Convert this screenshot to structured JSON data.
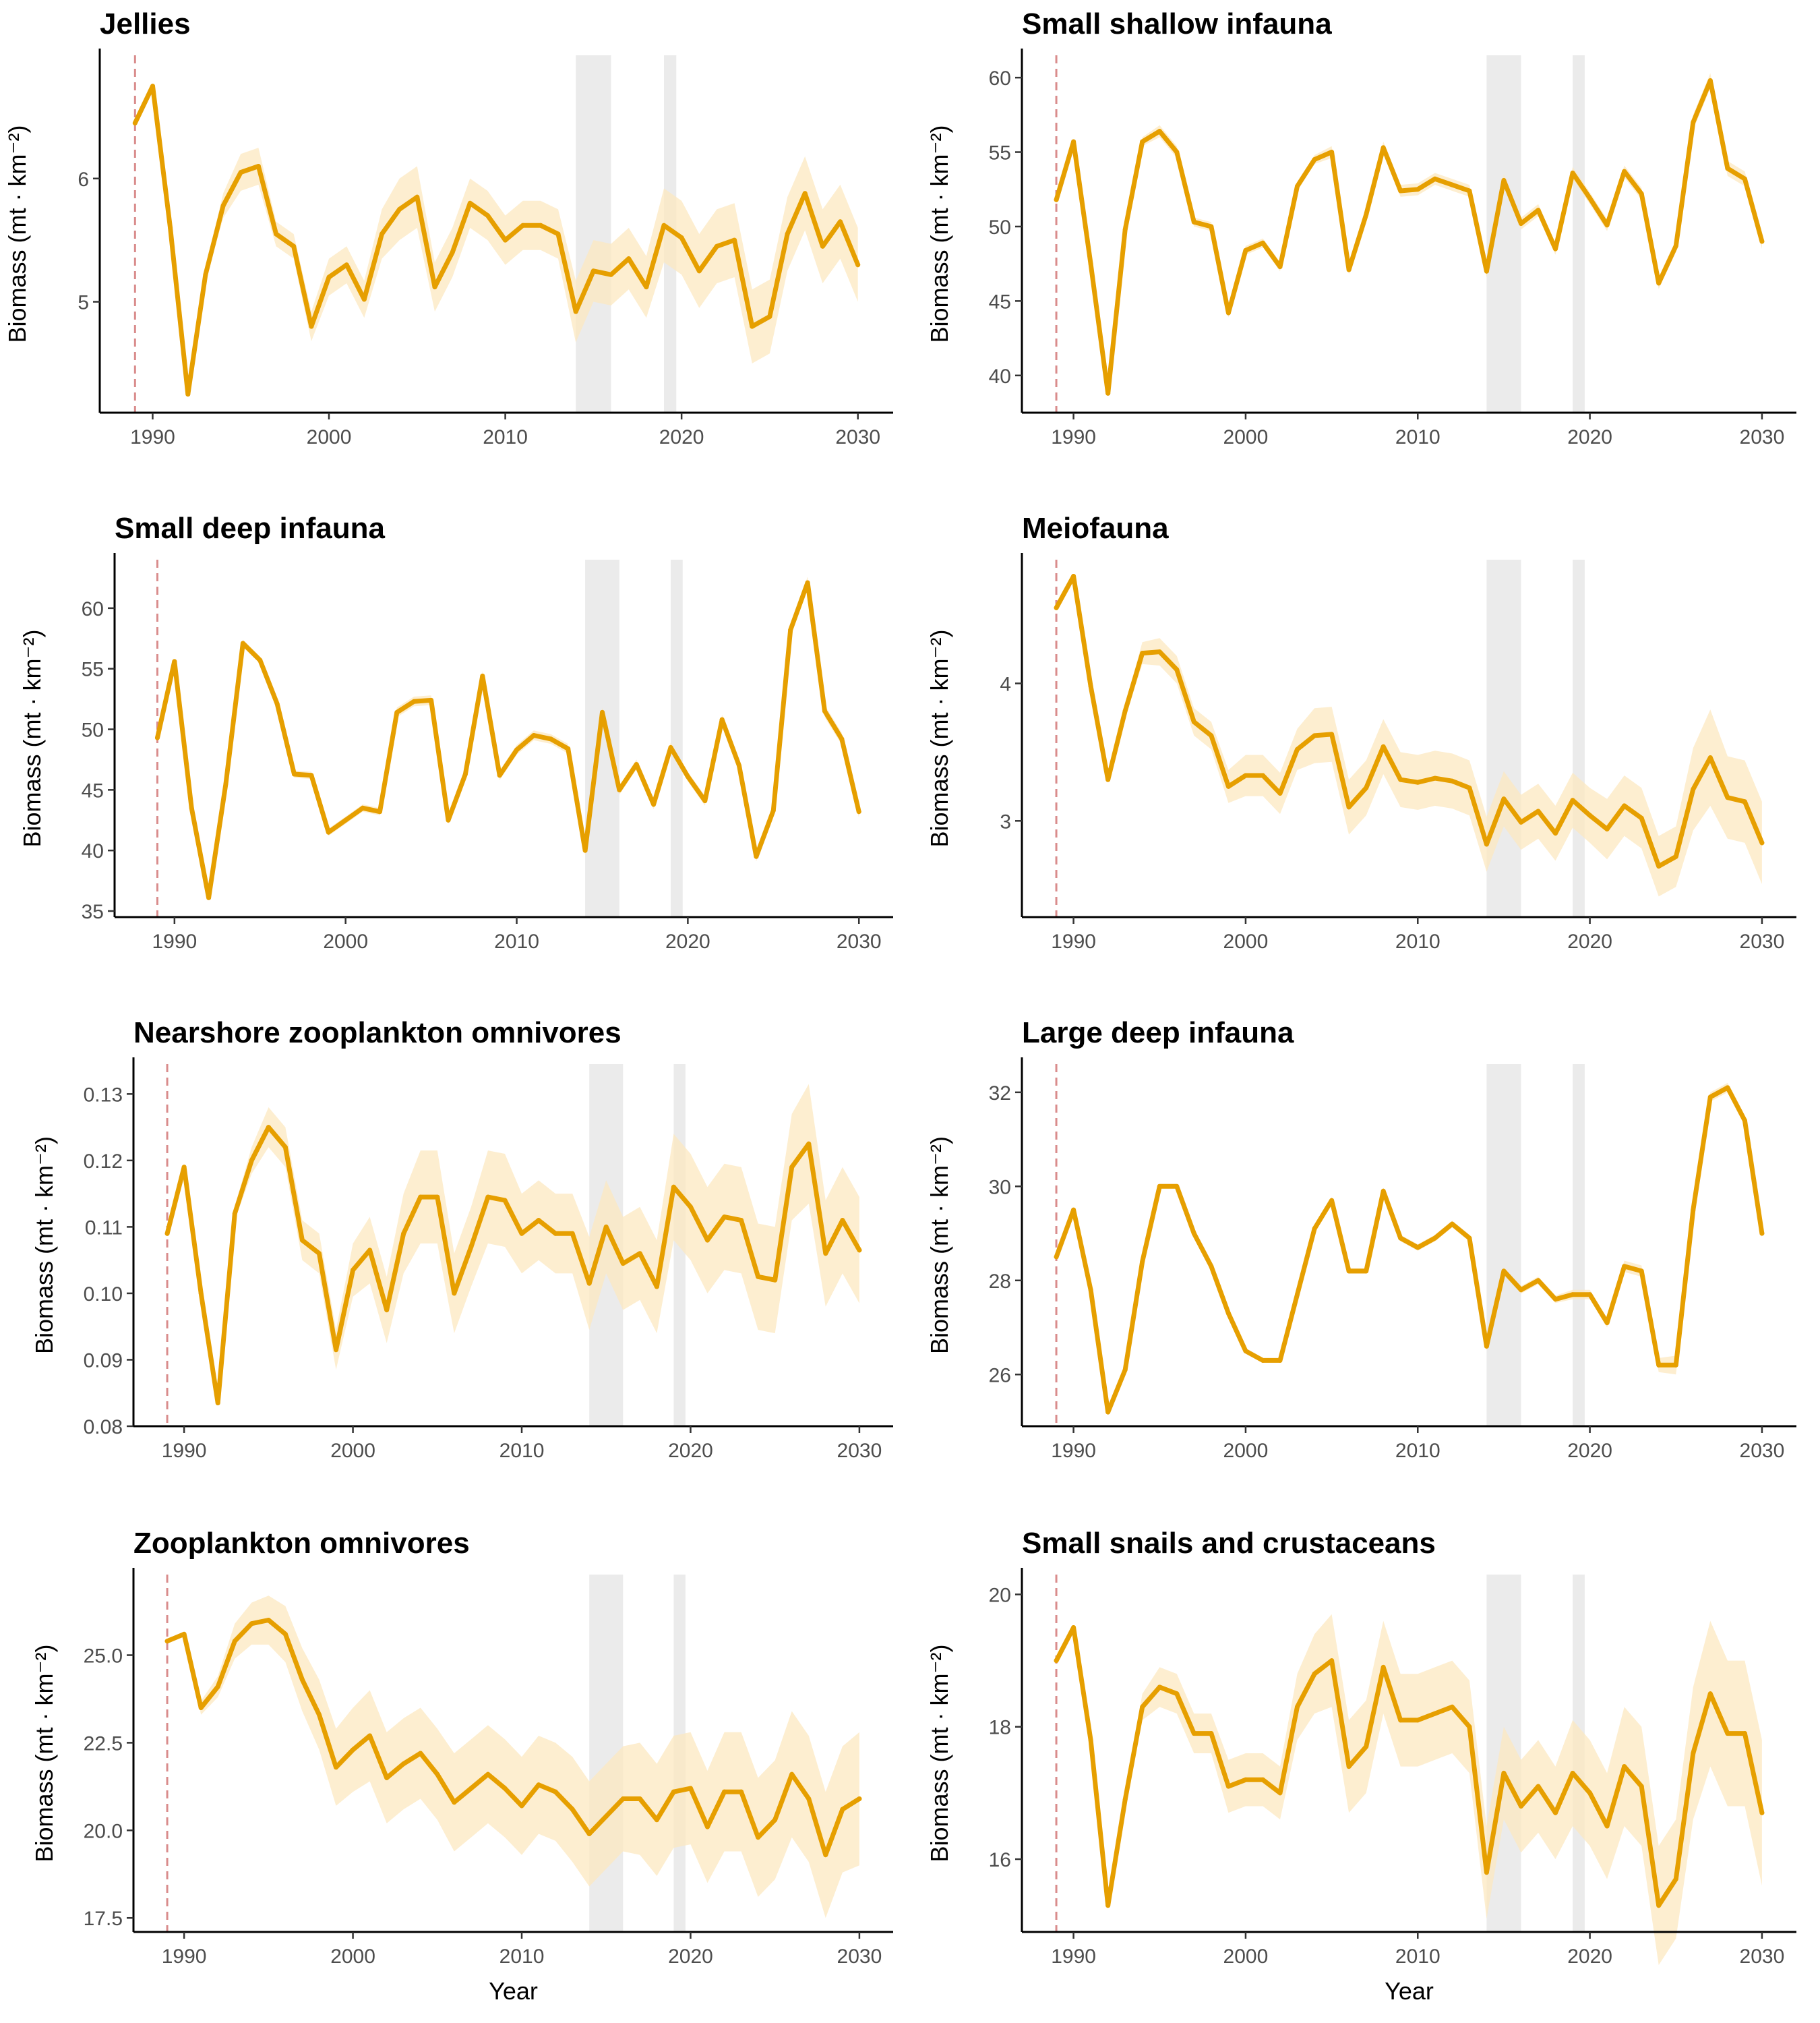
{
  "figure": {
    "xlabel": "Year",
    "ylabel": "Biomass (mt · km⁻²)",
    "colors": {
      "line": "#E69F00",
      "ribbon": "#FCE8C0",
      "event_band": "#EBEBEB",
      "marker_line": "#D98C8C"
    },
    "marker_year": 1989,
    "event_bands": [
      [
        2014,
        2016
      ],
      [
        2019,
        2019.7
      ]
    ],
    "x_ticks": [
      1990,
      2000,
      2010,
      2020,
      2030
    ]
  },
  "chart_data": [
    {
      "type": "line",
      "title": "Jellies",
      "xlim": [
        1987,
        2032
      ],
      "ylim": [
        4.1,
        7.0
      ],
      "yticks": [
        5,
        6
      ],
      "ytick_labels": [
        "5",
        "6"
      ],
      "x": [
        1989,
        1990,
        1991,
        1992,
        1993,
        1994,
        1995,
        1996,
        1997,
        1998,
        1999,
        2000,
        2001,
        2002,
        2003,
        2004,
        2005,
        2006,
        2007,
        2008,
        2009,
        2010,
        2011,
        2012,
        2013,
        2014,
        2015,
        2016,
        2017,
        2018,
        2019,
        2020,
        2021,
        2022,
        2023,
        2024,
        2025,
        2026,
        2027,
        2028,
        2029,
        2030
      ],
      "y": [
        6.45,
        6.75,
        5.6,
        4.25,
        5.22,
        5.78,
        6.05,
        6.1,
        5.55,
        5.45,
        4.8,
        5.2,
        5.3,
        5.02,
        5.55,
        5.75,
        5.85,
        5.12,
        5.4,
        5.8,
        5.7,
        5.5,
        5.62,
        5.62,
        5.55,
        4.92,
        5.25,
        5.22,
        5.35,
        5.12,
        5.62,
        5.52,
        5.25,
        5.45,
        5.5,
        4.8,
        4.88,
        5.55,
        5.88,
        5.45,
        5.65,
        5.3
      ],
      "band": [
        0,
        0,
        0,
        0,
        0.05,
        0.1,
        0.15,
        0.15,
        0.1,
        0.1,
        0.12,
        0.15,
        0.15,
        0.15,
        0.2,
        0.25,
        0.25,
        0.2,
        0.2,
        0.2,
        0.2,
        0.2,
        0.2,
        0.2,
        0.2,
        0.25,
        0.25,
        0.25,
        0.25,
        0.25,
        0.3,
        0.3,
        0.3,
        0.3,
        0.3,
        0.3,
        0.3,
        0.3,
        0.3,
        0.3,
        0.3,
        0.3
      ]
    },
    {
      "type": "line",
      "title": "Small shallow infauna",
      "xlim": [
        1987,
        2032
      ],
      "ylim": [
        37.5,
        61.5
      ],
      "yticks": [
        40,
        45,
        50,
        55,
        60
      ],
      "ytick_labels": [
        "40",
        "45",
        "50",
        "55",
        "60"
      ],
      "x": [
        1989,
        1990,
        1991,
        1992,
        1993,
        1994,
        1995,
        1996,
        1997,
        1998,
        1999,
        2000,
        2001,
        2002,
        2003,
        2004,
        2005,
        2006,
        2007,
        2008,
        2009,
        2010,
        2011,
        2012,
        2013,
        2014,
        2015,
        2016,
        2017,
        2018,
        2019,
        2020,
        2021,
        2022,
        2023,
        2024,
        2025,
        2026,
        2027,
        2028,
        2029,
        2030
      ],
      "y": [
        51.8,
        55.7,
        47.5,
        38.8,
        49.8,
        55.7,
        56.4,
        55,
        50.3,
        50,
        44.2,
        48.4,
        48.9,
        47.3,
        52.7,
        54.5,
        55,
        47.1,
        50.8,
        55.3,
        52.4,
        52.5,
        53.2,
        52.8,
        52.4,
        47,
        53.1,
        50.2,
        51.1,
        48.5,
        53.6,
        51.9,
        50.1,
        53.7,
        52.2,
        46.2,
        48.7,
        57,
        59.8,
        53.9,
        53.2,
        49
      ],
      "band": [
        0,
        0,
        0,
        0,
        0.2,
        0.3,
        0.4,
        0.4,
        0.3,
        0.3,
        0.3,
        0.3,
        0.3,
        0.3,
        0.3,
        0.3,
        0.4,
        0.3,
        0.3,
        0.4,
        0.4,
        0.4,
        0.4,
        0.4,
        0.4,
        0.4,
        0.4,
        0.4,
        0.4,
        0.4,
        0.4,
        0.4,
        0.4,
        0.4,
        0.4,
        0.4,
        0.4,
        0.5,
        0.5,
        0.5,
        0.5,
        0.5
      ]
    },
    {
      "type": "line",
      "title": "Small deep infauna",
      "xlim": [
        1986.5,
        2032
      ],
      "ylim": [
        34.5,
        64
      ],
      "yticks": [
        35,
        40,
        45,
        50,
        55,
        60
      ],
      "ytick_labels": [
        "35",
        "40",
        "45",
        "50",
        "55",
        "60"
      ],
      "x": [
        1989,
        1990,
        1991,
        1992,
        1993,
        1994,
        1995,
        1996,
        1997,
        1998,
        1999,
        2000,
        2001,
        2002,
        2003,
        2004,
        2005,
        2006,
        2007,
        2008,
        2009,
        2010,
        2011,
        2012,
        2013,
        2014,
        2015,
        2016,
        2017,
        2018,
        2019,
        2020,
        2021,
        2022,
        2023,
        2024,
        2025,
        2026,
        2027,
        2028,
        2029,
        2030
      ],
      "y": [
        49.3,
        55.6,
        43.5,
        36.1,
        45.5,
        57.1,
        55.7,
        52.1,
        46.3,
        46.2,
        41.5,
        42.5,
        43.5,
        43.2,
        51.4,
        52.3,
        52.4,
        42.5,
        46.3,
        54.4,
        46.2,
        48.3,
        49.5,
        49.2,
        48.4,
        40,
        51.4,
        45,
        47.1,
        43.8,
        48.5,
        46.1,
        44.1,
        50.8,
        47,
        39.5,
        43.3,
        58.2,
        62.1,
        51.5,
        49.2,
        43.2
      ],
      "band": [
        0,
        0,
        0,
        0,
        0.2,
        0.3,
        0.3,
        0.3,
        0.3,
        0.3,
        0.3,
        0.3,
        0.3,
        0.3,
        0.4,
        0.4,
        0.4,
        0.3,
        0.3,
        0.4,
        0.4,
        0.4,
        0.4,
        0.4,
        0.4,
        0.4,
        0.4,
        0.4,
        0.4,
        0.4,
        0.4,
        0.4,
        0.4,
        0.4,
        0.4,
        0.4,
        0.4,
        0.5,
        0.5,
        0.5,
        0.5,
        0.5
      ]
    },
    {
      "type": "line",
      "title": "Meiofauna",
      "xlim": [
        1987,
        2032
      ],
      "ylim": [
        2.3,
        4.9
      ],
      "yticks": [
        3,
        4
      ],
      "ytick_labels": [
        "3",
        "4"
      ],
      "x": [
        1989,
        1990,
        1991,
        1992,
        1993,
        1994,
        1995,
        1996,
        1997,
        1998,
        1999,
        2000,
        2001,
        2002,
        2003,
        2004,
        2005,
        2006,
        2007,
        2008,
        2009,
        2010,
        2011,
        2012,
        2013,
        2014,
        2015,
        2016,
        2017,
        2018,
        2019,
        2020,
        2021,
        2022,
        2023,
        2024,
        2025,
        2026,
        2027,
        2028,
        2029,
        2030
      ],
      "y": [
        4.55,
        4.78,
        3.98,
        3.3,
        3.8,
        4.22,
        4.23,
        4.1,
        3.72,
        3.62,
        3.25,
        3.33,
        3.33,
        3.2,
        3.52,
        3.62,
        3.63,
        3.1,
        3.24,
        3.54,
        3.3,
        3.28,
        3.31,
        3.29,
        3.24,
        2.83,
        3.16,
        2.99,
        3.07,
        2.91,
        3.15,
        3.04,
        2.94,
        3.11,
        3.02,
        2.67,
        2.74,
        3.23,
        3.46,
        3.17,
        3.14,
        2.84
      ],
      "band": [
        0,
        0,
        0,
        0,
        0.05,
        0.08,
        0.1,
        0.1,
        0.1,
        0.1,
        0.12,
        0.15,
        0.15,
        0.15,
        0.15,
        0.2,
        0.2,
        0.2,
        0.2,
        0.2,
        0.2,
        0.2,
        0.2,
        0.2,
        0.2,
        0.2,
        0.2,
        0.2,
        0.2,
        0.2,
        0.2,
        0.2,
        0.22,
        0.22,
        0.22,
        0.22,
        0.22,
        0.3,
        0.35,
        0.3,
        0.3,
        0.3
      ]
    },
    {
      "type": "line",
      "title": "Nearshore zooplankton omnivores",
      "xlim": [
        1987,
        2032
      ],
      "ylim": [
        0.08,
        0.1345
      ],
      "yticks": [
        0.08,
        0.09,
        0.1,
        0.11,
        0.12,
        0.13
      ],
      "ytick_labels": [
        "0.08",
        "0.09",
        "0.10",
        "0.11",
        "0.12",
        "0.13"
      ],
      "x": [
        1989,
        1990,
        1991,
        1992,
        1993,
        1994,
        1995,
        1996,
        1997,
        1998,
        1999,
        2000,
        2001,
        2002,
        2003,
        2004,
        2005,
        2006,
        2007,
        2008,
        2009,
        2010,
        2011,
        2012,
        2013,
        2014,
        2015,
        2016,
        2017,
        2018,
        2019,
        2020,
        2021,
        2022,
        2023,
        2024,
        2025,
        2026,
        2027,
        2028,
        2029,
        2030
      ],
      "y": [
        0.109,
        0.119,
        0.1,
        0.0835,
        0.112,
        0.12,
        0.125,
        0.122,
        0.108,
        0.106,
        0.0915,
        0.1035,
        0.1065,
        0.0975,
        0.109,
        0.1145,
        0.1145,
        0.1,
        0.107,
        0.1145,
        0.114,
        0.109,
        0.111,
        0.109,
        0.109,
        0.1015,
        0.11,
        0.1045,
        0.106,
        0.101,
        0.116,
        0.113,
        0.108,
        0.1115,
        0.111,
        0.1025,
        0.102,
        0.119,
        0.1225,
        0.106,
        0.111,
        0.1065
      ],
      "band": [
        0,
        0,
        0,
        0,
        0.001,
        0.002,
        0.003,
        0.003,
        0.003,
        0.003,
        0.003,
        0.004,
        0.005,
        0.005,
        0.006,
        0.007,
        0.007,
        0.006,
        0.006,
        0.007,
        0.007,
        0.006,
        0.006,
        0.006,
        0.006,
        0.007,
        0.007,
        0.007,
        0.007,
        0.007,
        0.008,
        0.008,
        0.008,
        0.008,
        0.008,
        0.008,
        0.008,
        0.008,
        0.009,
        0.008,
        0.008,
        0.008
      ]
    },
    {
      "type": "line",
      "title": "Large deep infauna",
      "xlim": [
        1987,
        2032
      ],
      "ylim": [
        24.9,
        32.6
      ],
      "yticks": [
        26,
        28,
        30,
        32
      ],
      "ytick_labels": [
        "26",
        "28",
        "30",
        "32"
      ],
      "x": [
        1989,
        1990,
        1991,
        1992,
        1993,
        1994,
        1995,
        1996,
        1997,
        1998,
        1999,
        2000,
        2001,
        2002,
        2003,
        2004,
        2005,
        2006,
        2007,
        2008,
        2009,
        2010,
        2011,
        2012,
        2013,
        2014,
        2015,
        2016,
        2017,
        2018,
        2019,
        2020,
        2021,
        2022,
        2023,
        2024,
        2025,
        2026,
        2027,
        2028,
        2029,
        2030
      ],
      "y": [
        28.5,
        29.5,
        27.8,
        25.2,
        26.1,
        28.4,
        30,
        30,
        29,
        28.3,
        27.3,
        26.5,
        26.3,
        26.3,
        27.7,
        29.1,
        29.7,
        28.2,
        28.2,
        29.9,
        28.9,
        28.7,
        28.9,
        29.2,
        28.9,
        26.6,
        28.2,
        27.8,
        28,
        27.6,
        27.7,
        27.7,
        27.1,
        28.3,
        28.2,
        26.2,
        26.2,
        29.5,
        31.9,
        32.1,
        31.4,
        29
      ],
      "band": [
        0,
        0,
        0,
        0,
        0.02,
        0.03,
        0.05,
        0.05,
        0.05,
        0.05,
        0.05,
        0.05,
        0.05,
        0.05,
        0.06,
        0.07,
        0.07,
        0.06,
        0.06,
        0.07,
        0.07,
        0.07,
        0.07,
        0.07,
        0.07,
        0.08,
        0.08,
        0.08,
        0.08,
        0.08,
        0.1,
        0.1,
        0.1,
        0.12,
        0.12,
        0.15,
        0.2,
        0.1,
        0.1,
        0.1,
        0.1,
        0.1
      ]
    },
    {
      "type": "line",
      "title": "Zooplankton omnivores",
      "xlim": [
        1987,
        2032
      ],
      "ylim": [
        17.1,
        27.3
      ],
      "yticks": [
        17.5,
        20,
        22.5,
        25
      ],
      "ytick_labels": [
        "17.5",
        "20.0",
        "22.5",
        "25.0"
      ],
      "x": [
        1989,
        1990,
        1991,
        1992,
        1993,
        1994,
        1995,
        1996,
        1997,
        1998,
        1999,
        2000,
        2001,
        2002,
        2003,
        2004,
        2005,
        2006,
        2007,
        2008,
        2009,
        2010,
        2011,
        2012,
        2013,
        2014,
        2015,
        2016,
        2017,
        2018,
        2019,
        2020,
        2021,
        2022,
        2023,
        2024,
        2025,
        2026,
        2027,
        2028,
        2029,
        2030
      ],
      "y": [
        25.4,
        25.6,
        23.5,
        24.1,
        25.4,
        25.9,
        26,
        25.6,
        24.3,
        23.3,
        21.8,
        22.3,
        22.7,
        21.5,
        21.9,
        22.2,
        21.6,
        20.8,
        21.2,
        21.6,
        21.2,
        20.7,
        21.3,
        21.1,
        20.6,
        19.9,
        20.4,
        20.9,
        20.9,
        20.3,
        21.1,
        21.2,
        20.1,
        21.1,
        21.1,
        19.8,
        20.3,
        21.6,
        20.9,
        19.3,
        20.6,
        20.9
      ],
      "band": [
        0,
        0,
        0.2,
        0.3,
        0.5,
        0.6,
        0.7,
        0.8,
        0.9,
        1,
        1.1,
        1.2,
        1.3,
        1.3,
        1.3,
        1.3,
        1.3,
        1.4,
        1.4,
        1.4,
        1.4,
        1.4,
        1.4,
        1.4,
        1.5,
        1.5,
        1.5,
        1.5,
        1.6,
        1.6,
        1.6,
        1.6,
        1.6,
        1.7,
        1.7,
        1.7,
        1.7,
        1.8,
        1.8,
        1.8,
        1.8,
        1.9
      ]
    },
    {
      "type": "line",
      "title": "Small snails and crustaceans",
      "xlim": [
        1987,
        2032
      ],
      "ylim": [
        14.9,
        20.3
      ],
      "yticks": [
        16,
        18,
        20
      ],
      "ytick_labels": [
        "16",
        "18",
        "20"
      ],
      "x": [
        1989,
        1990,
        1991,
        1992,
        1993,
        1994,
        1995,
        1996,
        1997,
        1998,
        1999,
        2000,
        2001,
        2002,
        2003,
        2004,
        2005,
        2006,
        2007,
        2008,
        2009,
        2010,
        2011,
        2012,
        2013,
        2014,
        2015,
        2016,
        2017,
        2018,
        2019,
        2020,
        2021,
        2022,
        2023,
        2024,
        2025,
        2026,
        2027,
        2028,
        2029,
        2030
      ],
      "y": [
        19,
        19.5,
        17.8,
        15.3,
        16.9,
        18.3,
        18.6,
        18.5,
        17.9,
        17.9,
        17.1,
        17.2,
        17.2,
        17,
        18.3,
        18.8,
        19,
        17.4,
        17.7,
        18.9,
        18.1,
        18.1,
        18.2,
        18.3,
        18,
        15.8,
        17.3,
        16.8,
        17.1,
        16.7,
        17.3,
        17,
        16.5,
        17.4,
        17.1,
        15.3,
        15.7,
        17.6,
        18.5,
        17.9,
        17.9,
        16.7
      ],
      "band": [
        0,
        0,
        0,
        0,
        0.1,
        0.2,
        0.3,
        0.3,
        0.3,
        0.3,
        0.4,
        0.4,
        0.4,
        0.4,
        0.5,
        0.6,
        0.7,
        0.7,
        0.7,
        0.7,
        0.7,
        0.7,
        0.7,
        0.7,
        0.7,
        0.7,
        0.7,
        0.7,
        0.7,
        0.7,
        0.8,
        0.8,
        0.8,
        0.9,
        0.9,
        0.9,
        0.9,
        1,
        1.1,
        1.1,
        1.1,
        1.1
      ]
    }
  ]
}
